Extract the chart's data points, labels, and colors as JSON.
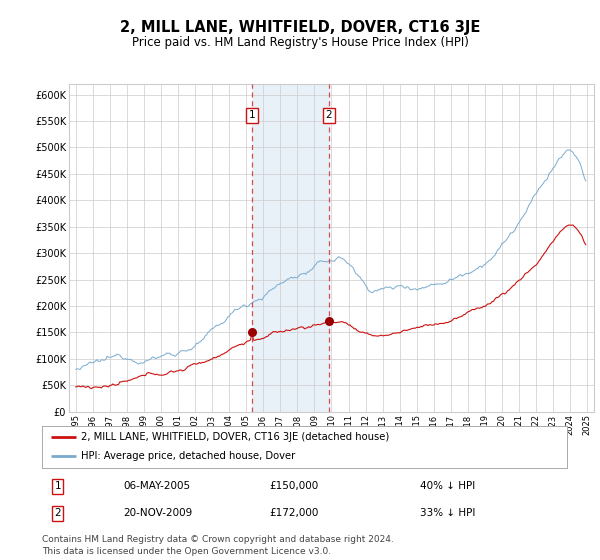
{
  "title": "2, MILL LANE, WHITFIELD, DOVER, CT16 3JE",
  "subtitle": "Price paid vs. HM Land Registry's House Price Index (HPI)",
  "title_fontsize": 10.5,
  "subtitle_fontsize": 8.5,
  "ylim": [
    0,
    620000
  ],
  "yticks": [
    0,
    50000,
    100000,
    150000,
    200000,
    250000,
    300000,
    350000,
    400000,
    450000,
    500000,
    550000,
    600000
  ],
  "ytick_labels": [
    "£0",
    "£50K",
    "£100K",
    "£150K",
    "£200K",
    "£250K",
    "£300K",
    "£350K",
    "£400K",
    "£450K",
    "£500K",
    "£550K",
    "£600K"
  ],
  "sale1_date": "06-MAY-2005",
  "sale1_price": 150000,
  "sale1_pct": "40%",
  "sale2_date": "20-NOV-2009",
  "sale2_price": 172000,
  "sale2_pct": "33%",
  "hpi_color": "#7aabcf",
  "property_color": "#cc1111",
  "sale_marker_color": "#990000",
  "highlight_color": "#e8f0f8",
  "grid_color": "#cccccc",
  "legend_label_property": "2, MILL LANE, WHITFIELD, DOVER, CT16 3JE (detached house)",
  "legend_label_hpi": "HPI: Average price, detached house, Dover",
  "footer": "Contains HM Land Registry data © Crown copyright and database right 2024.\nThis data is licensed under the Open Government Licence v3.0.",
  "footer_fontsize": 6.5,
  "seed": 12345
}
